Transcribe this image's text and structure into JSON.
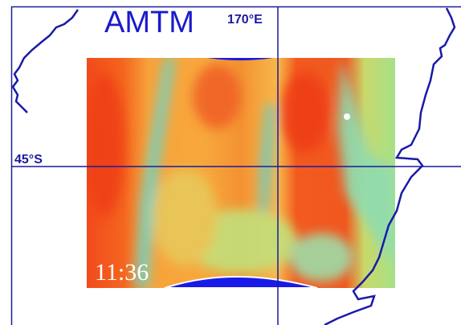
{
  "labels": {
    "title": "AMTM",
    "longitude": "170°E",
    "latitude": "45°S",
    "time": "11:36"
  }
}
